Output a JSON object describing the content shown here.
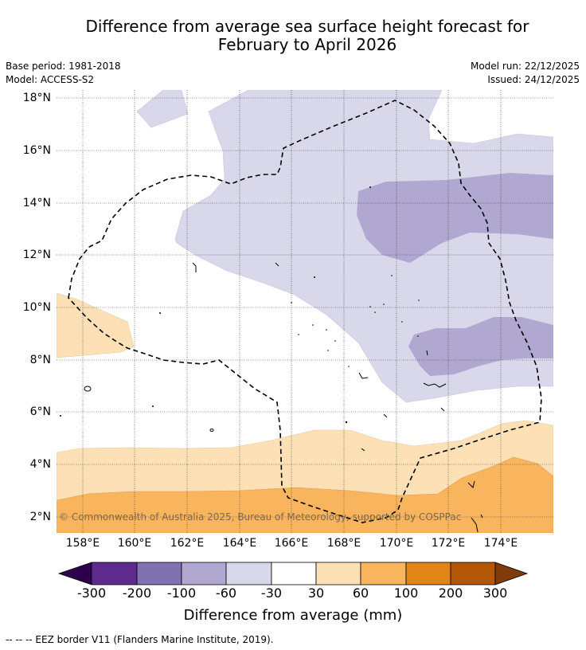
{
  "title": {
    "line1": "Difference from average sea surface height forecast for",
    "line2": "February to April 2026"
  },
  "meta": {
    "base_period": "Base period: 1981-2018",
    "model": "Model: ACCESS-S2",
    "model_run": "Model run: 22/12/2025",
    "issued": "Issued: 24/12/2025"
  },
  "map": {
    "lat_labels": [
      "18°N",
      "16°N",
      "14°N",
      "12°N",
      "10°N",
      "8°N",
      "6°N",
      "4°N",
      "2°N"
    ],
    "lon_labels": [
      "158°E",
      "160°E",
      "162°E",
      "164°E",
      "166°E",
      "168°E",
      "170°E",
      "172°E",
      "174°E"
    ],
    "copyright": "© Commonwealth of Australia 2025, Bureau of Meteorology, supported by COSPPac"
  },
  "colorbar": {
    "title": "Difference from average (mm)",
    "ticks": [
      "-300",
      "-200",
      "-100",
      "-60",
      "-30",
      "30",
      "60",
      "100",
      "200",
      "300"
    ],
    "colors": {
      "lt_300": "#2d004b",
      "m300_m200": "#5e2a8e",
      "m200_m100": "#8072b0",
      "m100_m60": "#b0a8d1",
      "m60_m30": "#d8d8ea",
      "m30_30": "#ffffff",
      "p30_60": "#fde0b6",
      "p60_100": "#f8b55e",
      "p100_200": "#e28519",
      "p200_300": "#b35807",
      "gt_300": "#7f3b08"
    }
  },
  "eez_note": "--  --  -- EEZ border V11 (Flanders Marine Institute, 2019)."
}
